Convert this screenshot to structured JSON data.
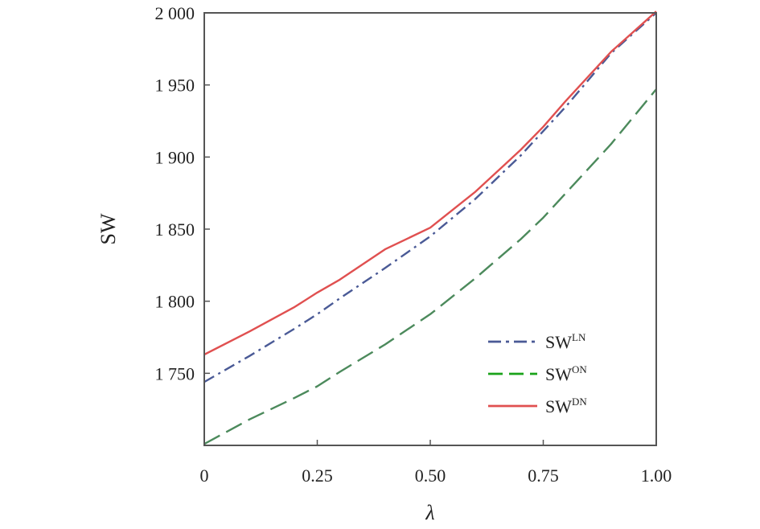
{
  "chart_data": {
    "type": "line",
    "xlabel": "λ",
    "ylabel": "SW",
    "xlim": [
      0,
      1.0
    ],
    "ylim": [
      1700,
      2000
    ],
    "x_ticks": [
      0,
      0.25,
      0.5,
      0.75,
      1.0
    ],
    "x_tick_labels": [
      "0",
      "0.25",
      "0.50",
      "0.75",
      "1.00"
    ],
    "y_ticks": [
      1750,
      1800,
      1850,
      1900,
      1950,
      2000
    ],
    "y_tick_labels": [
      "1 750",
      "1 800",
      "1 850",
      "1 900",
      "1 950",
      "2 000"
    ],
    "grid": false,
    "legend_position": "bottom-right",
    "x": [
      0,
      0.1,
      0.2,
      0.25,
      0.3,
      0.4,
      0.5,
      0.6,
      0.7,
      0.75,
      0.8,
      0.9,
      1.0
    ],
    "series": [
      {
        "name_base": "SW",
        "name_sup": "LN",
        "color": "#4a5a96",
        "style": "dashdot",
        "values": [
          1744,
          1762,
          1781,
          1791,
          1802,
          1823,
          1845,
          1871,
          1901,
          1918,
          1935,
          1972,
          2000
        ]
      },
      {
        "name_base": "SW",
        "name_sup": "ON",
        "color": "#1aa31a",
        "style": "dashed",
        "line_color": "#4c8a5c",
        "values": [
          1701,
          1718,
          1733,
          1741,
          1751,
          1770,
          1791,
          1816,
          1843,
          1858,
          1875,
          1909,
          1947
        ]
      },
      {
        "name_base": "SW",
        "name_sup": "DN",
        "color": "#e05050",
        "style": "solid",
        "values": [
          1763,
          1779,
          1796,
          1806,
          1815,
          1836,
          1851,
          1876,
          1905,
          1921,
          1939,
          1973,
          2001
        ]
      }
    ]
  }
}
